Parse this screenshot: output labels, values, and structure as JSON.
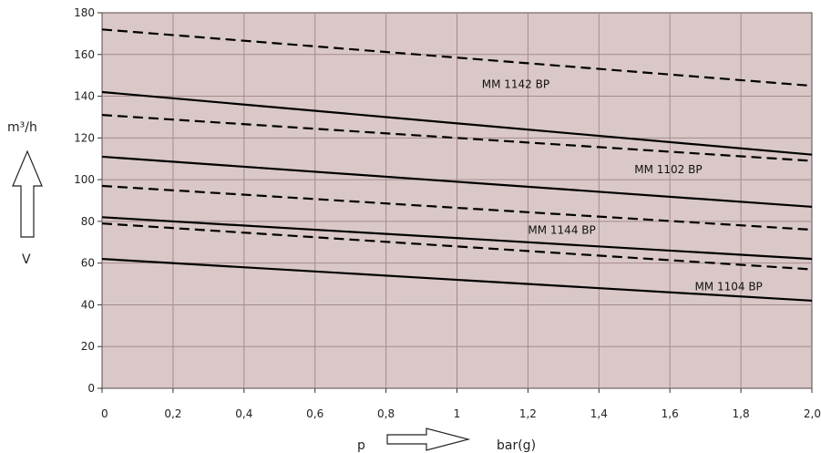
{
  "chart_data": {
    "type": "line",
    "xlabel": "p",
    "xunit": "bar(g)",
    "ylabel": "m³/h",
    "yvar": "V",
    "xlim": [
      0,
      2.0
    ],
    "ylim": [
      0,
      180
    ],
    "x_ticks": [
      "0",
      "0,2",
      "0,4",
      "0,6",
      "0,8",
      "1",
      "1,2",
      "1,4",
      "1,6",
      "1,8",
      "2,0"
    ],
    "y_ticks": [
      "0",
      "20",
      "40",
      "60",
      "80",
      "100",
      "120",
      "140",
      "160",
      "180"
    ],
    "grid": true,
    "series": [
      {
        "style": "dashed",
        "x": [
          0,
          2.0
        ],
        "y": [
          172,
          145
        ]
      },
      {
        "style": "solid",
        "x": [
          0,
          2.0
        ],
        "y": [
          142,
          112
        ]
      },
      {
        "style": "dashed",
        "x": [
          0,
          2.0
        ],
        "y": [
          131,
          109
        ]
      },
      {
        "style": "solid",
        "x": [
          0,
          2.0
        ],
        "y": [
          111,
          87
        ]
      },
      {
        "style": "dashed",
        "x": [
          0,
          2.0
        ],
        "y": [
          97,
          76
        ]
      },
      {
        "style": "solid",
        "x": [
          0,
          2.0
        ],
        "y": [
          82,
          62
        ]
      },
      {
        "style": "dashed",
        "x": [
          0,
          2.0
        ],
        "y": [
          79,
          57
        ]
      },
      {
        "style": "solid",
        "x": [
          0,
          2.0
        ],
        "y": [
          62,
          42
        ]
      }
    ],
    "annotations": [
      {
        "text": "MM 1142 BP",
        "x": 1.07,
        "y": 144
      },
      {
        "text": "MM 1102 BP",
        "x": 1.5,
        "y": 103
      },
      {
        "text": "MM 1144 BP",
        "x": 1.2,
        "y": 74
      },
      {
        "text": "MM 1104 BP",
        "x": 1.67,
        "y": 47
      }
    ],
    "colors": {
      "plot_bg": "#d9c8c7",
      "grid": "#a58a8d",
      "line": "#000000"
    }
  }
}
